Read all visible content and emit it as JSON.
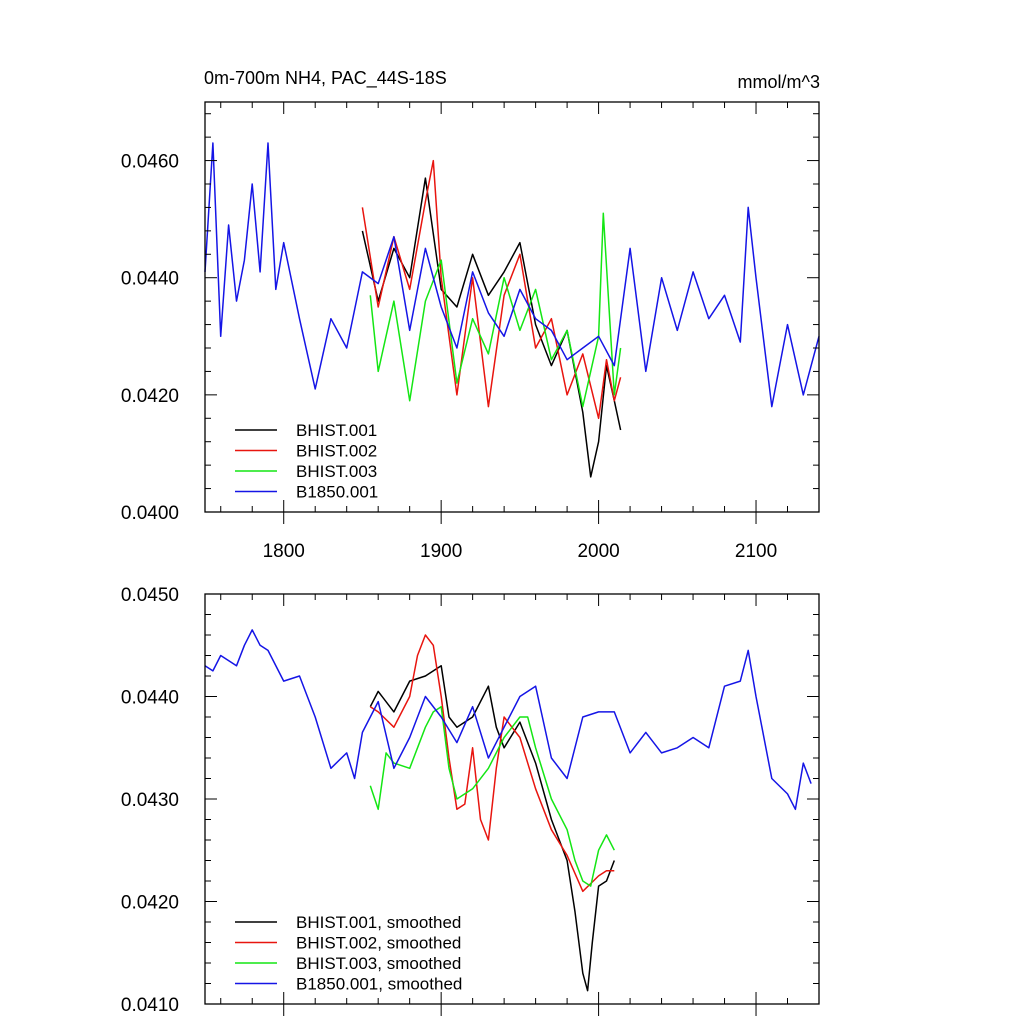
{
  "colors": {
    "BHIST.001": "#000000",
    "BHIST.002": "#e8150f",
    "BHIST.003": "#14e614",
    "B1850.001": "#1515e6"
  },
  "chart_data": [
    {
      "type": "line",
      "title": "0m-700m NH4, PAC_44S-18S",
      "units": "mmol/m^3",
      "xlim": [
        1750,
        2140
      ],
      "ylim": [
        0.04,
        0.047
      ],
      "yticks": [
        0.04,
        0.042,
        0.044,
        0.046
      ],
      "ytick_labels": [
        "0.0400",
        "0.0420",
        "0.0440",
        "0.0460"
      ],
      "xticks": [
        1800,
        1900,
        2000,
        2100
      ],
      "xtick_labels": [
        "1800",
        "1900",
        "2000",
        "2100"
      ],
      "legend_position": "bottom-left",
      "series": [
        {
          "name": "BHIST.001",
          "x": [
            1850,
            1860,
            1870,
            1880,
            1890,
            1900,
            1910,
            1920,
            1930,
            1940,
            1950,
            1960,
            1970,
            1980,
            1990,
            1995,
            2000,
            2005,
            2010,
            2014
          ],
          "values": [
            0.0448,
            0.0436,
            0.0445,
            0.044,
            0.0457,
            0.0438,
            0.0435,
            0.0444,
            0.0437,
            0.0441,
            0.0446,
            0.0432,
            0.0425,
            0.0431,
            0.0417,
            0.0406,
            0.0412,
            0.0425,
            0.0419,
            0.0414
          ]
        },
        {
          "name": "BHIST.002",
          "x": [
            1850,
            1860,
            1870,
            1880,
            1890,
            1895,
            1900,
            1910,
            1920,
            1930,
            1940,
            1950,
            1960,
            1970,
            1980,
            1990,
            2000,
            2005,
            2010,
            2014
          ],
          "values": [
            0.0452,
            0.0435,
            0.0447,
            0.0438,
            0.0453,
            0.046,
            0.044,
            0.042,
            0.044,
            0.0418,
            0.0437,
            0.0444,
            0.0428,
            0.0433,
            0.042,
            0.0427,
            0.0416,
            0.0426,
            0.0419,
            0.0423
          ]
        },
        {
          "name": "BHIST.003",
          "x": [
            1855,
            1860,
            1870,
            1880,
            1890,
            1900,
            1910,
            1920,
            1930,
            1940,
            1950,
            1960,
            1970,
            1980,
            1990,
            2000,
            2003,
            2010,
            2014
          ],
          "values": [
            0.0437,
            0.0424,
            0.0436,
            0.0419,
            0.0436,
            0.0443,
            0.0422,
            0.0433,
            0.0427,
            0.044,
            0.0431,
            0.0438,
            0.0426,
            0.0431,
            0.0418,
            0.043,
            0.0451,
            0.042,
            0.0428
          ]
        },
        {
          "name": "B1850.001",
          "x": [
            1750,
            1755,
            1760,
            1765,
            1770,
            1775,
            1780,
            1785,
            1790,
            1795,
            1800,
            1810,
            1820,
            1830,
            1840,
            1850,
            1860,
            1870,
            1880,
            1890,
            1900,
            1910,
            1920,
            1930,
            1940,
            1950,
            1960,
            1970,
            1980,
            1990,
            2000,
            2010,
            2020,
            2030,
            2040,
            2050,
            2060,
            2070,
            2080,
            2090,
            2095,
            2100,
            2110,
            2120,
            2130,
            2140
          ],
          "values": [
            0.0441,
            0.0463,
            0.043,
            0.0449,
            0.0436,
            0.0443,
            0.0456,
            0.0441,
            0.0463,
            0.0438,
            0.0446,
            0.0433,
            0.0421,
            0.0433,
            0.0428,
            0.0441,
            0.0439,
            0.0447,
            0.0431,
            0.0445,
            0.0435,
            0.0428,
            0.0441,
            0.0434,
            0.043,
            0.0438,
            0.0433,
            0.0431,
            0.0426,
            0.0428,
            0.043,
            0.0425,
            0.0445,
            0.0424,
            0.044,
            0.0431,
            0.0441,
            0.0433,
            0.0437,
            0.0429,
            0.0452,
            0.044,
            0.0418,
            0.0432,
            0.042,
            0.043
          ]
        }
      ],
      "legend": [
        "BHIST.001",
        "BHIST.002",
        "BHIST.003",
        "B1850.001"
      ]
    },
    {
      "type": "line",
      "title": "",
      "xlim": [
        1750,
        2140
      ],
      "ylim": [
        0.041,
        0.045
      ],
      "yticks": [
        0.041,
        0.042,
        0.043,
        0.044,
        0.045
      ],
      "ytick_labels": [
        "0.0410",
        "0.0420",
        "0.0430",
        "0.0440",
        "0.0450"
      ],
      "xticks": [
        1800,
        1900,
        2000,
        2100
      ],
      "legend_position": "bottom-left",
      "series": [
        {
          "name": "BHIST.001, smoothed",
          "x": [
            1855,
            1860,
            1870,
            1880,
            1890,
            1895,
            1900,
            1905,
            1910,
            1920,
            1930,
            1935,
            1940,
            1950,
            1960,
            1970,
            1980,
            1985,
            1990,
            1993,
            1996,
            2000,
            2005,
            2010
          ],
          "values": [
            0.0439,
            0.04405,
            0.04385,
            0.04415,
            0.0442,
            0.04425,
            0.0443,
            0.0438,
            0.0437,
            0.0438,
            0.0441,
            0.0437,
            0.0435,
            0.04375,
            0.04335,
            0.0428,
            0.0424,
            0.0419,
            0.0413,
            0.04113,
            0.0416,
            0.04215,
            0.0422,
            0.0424
          ]
        },
        {
          "name": "BHIST.002, smoothed",
          "x": [
            1855,
            1860,
            1870,
            1880,
            1885,
            1890,
            1895,
            1900,
            1905,
            1910,
            1915,
            1920,
            1925,
            1930,
            1935,
            1940,
            1950,
            1960,
            1970,
            1980,
            1990,
            2000,
            2005,
            2010
          ],
          "values": [
            0.0439,
            0.04385,
            0.0437,
            0.044,
            0.0444,
            0.0446,
            0.0445,
            0.044,
            0.0434,
            0.0429,
            0.04295,
            0.0435,
            0.0428,
            0.0426,
            0.0433,
            0.0438,
            0.0436,
            0.0431,
            0.0427,
            0.04245,
            0.0421,
            0.04225,
            0.0423,
            0.0423
          ]
        },
        {
          "name": "BHIST.003, smoothed",
          "x": [
            1855,
            1860,
            1865,
            1870,
            1880,
            1890,
            1895,
            1900,
            1905,
            1910,
            1920,
            1930,
            1940,
            1950,
            1955,
            1960,
            1970,
            1980,
            1985,
            1990,
            1995,
            2000,
            2005,
            2010
          ],
          "values": [
            0.04313,
            0.0429,
            0.04345,
            0.04335,
            0.0433,
            0.0437,
            0.04385,
            0.0439,
            0.0433,
            0.043,
            0.0431,
            0.0433,
            0.0436,
            0.0438,
            0.0438,
            0.0435,
            0.043,
            0.0427,
            0.0424,
            0.0422,
            0.04215,
            0.0425,
            0.04265,
            0.0425
          ]
        },
        {
          "name": "B1850.001, smoothed",
          "x": [
            1750,
            1755,
            1760,
            1770,
            1775,
            1780,
            1785,
            1790,
            1800,
            1810,
            1820,
            1830,
            1840,
            1845,
            1850,
            1860,
            1870,
            1880,
            1890,
            1900,
            1910,
            1920,
            1930,
            1940,
            1950,
            1960,
            1970,
            1980,
            1990,
            2000,
            2010,
            2020,
            2030,
            2040,
            2050,
            2060,
            2070,
            2080,
            2090,
            2095,
            2100,
            2110,
            2120,
            2125,
            2130,
            2135
          ],
          "values": [
            0.0443,
            0.04425,
            0.0444,
            0.0443,
            0.0445,
            0.04465,
            0.0445,
            0.04445,
            0.04415,
            0.0442,
            0.0438,
            0.0433,
            0.04345,
            0.0432,
            0.04365,
            0.04395,
            0.0433,
            0.0436,
            0.044,
            0.0438,
            0.04355,
            0.0439,
            0.0434,
            0.0437,
            0.044,
            0.0441,
            0.0434,
            0.0432,
            0.0438,
            0.04385,
            0.04385,
            0.04345,
            0.04365,
            0.04345,
            0.0435,
            0.0436,
            0.0435,
            0.0441,
            0.04415,
            0.04445,
            0.044,
            0.0432,
            0.04305,
            0.0429,
            0.04335,
            0.04315
          ]
        }
      ],
      "legend": [
        "BHIST.001, smoothed",
        "BHIST.002, smoothed",
        "BHIST.003, smoothed",
        "B1850.001, smoothed"
      ]
    }
  ]
}
